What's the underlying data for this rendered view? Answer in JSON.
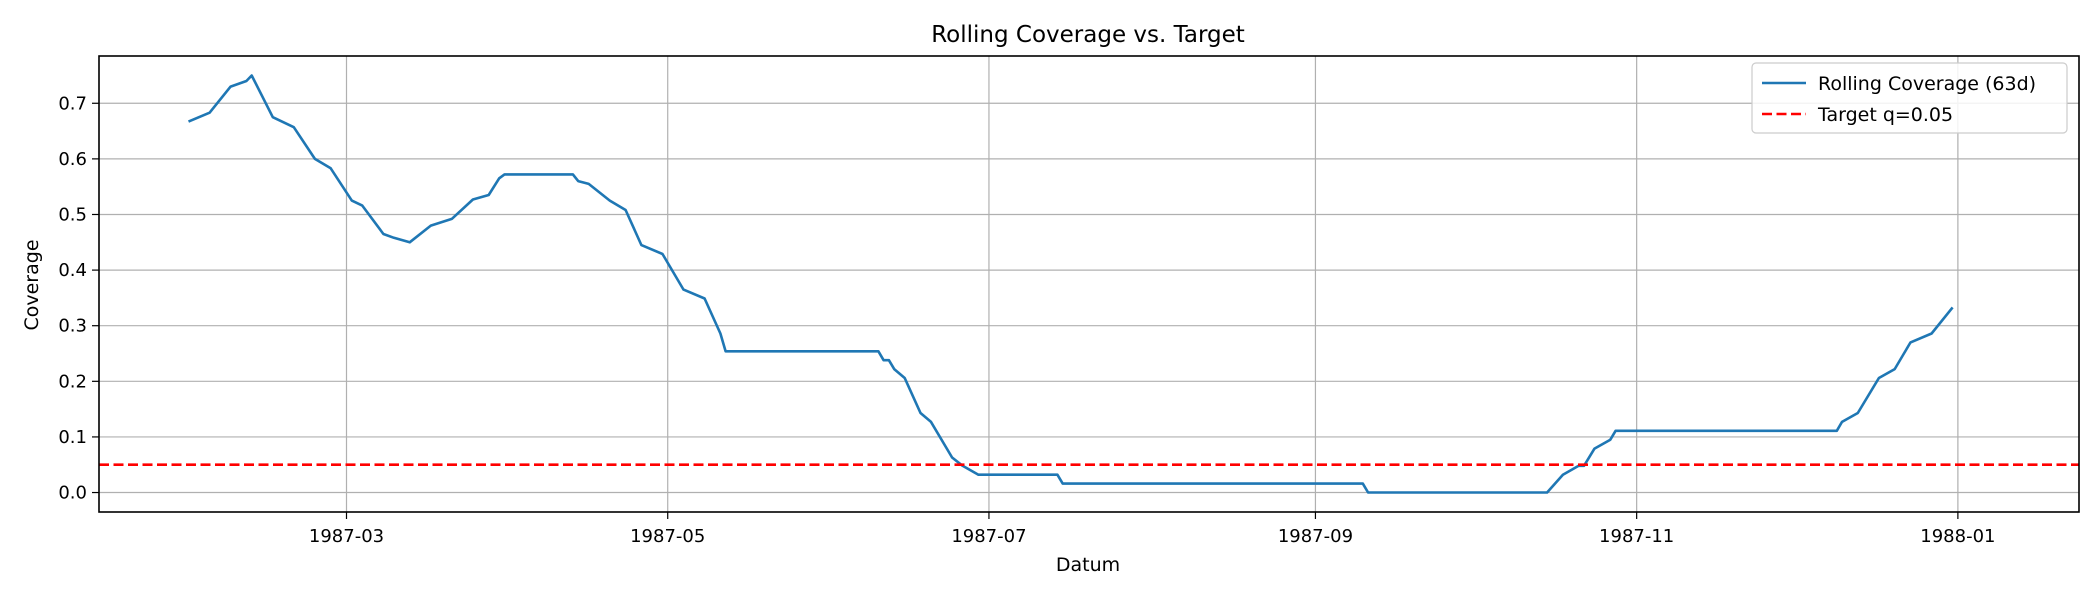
{
  "chart_data": {
    "type": "line",
    "title": "Rolling Coverage vs. Target",
    "xlabel": "Datum",
    "ylabel": "Coverage",
    "xlim": [
      "1987-01-13",
      "1988-01-24"
    ],
    "ylim": [
      -0.035,
      0.785
    ],
    "x_ticks": [
      "1987-03-01",
      "1987-05-01",
      "1987-07-01",
      "1987-09-01",
      "1987-11-01",
      "1988-01-01"
    ],
    "x_tick_labels": [
      "1987-03",
      "1987-05",
      "1987-07",
      "1987-09",
      "1987-11",
      "1988-01"
    ],
    "y_ticks": [
      0.0,
      0.1,
      0.2,
      0.3,
      0.4,
      0.5,
      0.6,
      0.7
    ],
    "y_tick_labels": [
      "0.0",
      "0.1",
      "0.2",
      "0.3",
      "0.4",
      "0.5",
      "0.6",
      "0.7"
    ],
    "grid": true,
    "legend_position": "top-right",
    "series": [
      {
        "name": "Rolling Coverage (63d)",
        "color": "#1f77b4",
        "style": "solid",
        "x": [
          "1987-01-30",
          "1987-02-03",
          "1987-02-07",
          "1987-02-10",
          "1987-02-11",
          "1987-02-15",
          "1987-02-19",
          "1987-02-23",
          "1987-02-26",
          "1987-03-02",
          "1987-03-04",
          "1987-03-08",
          "1987-03-10",
          "1987-03-13",
          "1987-03-17",
          "1987-03-21",
          "1987-03-25",
          "1987-03-28",
          "1987-03-30",
          "1987-03-31",
          "1987-04-02",
          "1987-04-10",
          "1987-04-13",
          "1987-04-14",
          "1987-04-16",
          "1987-04-20",
          "1987-04-23",
          "1987-04-26",
          "1987-04-30",
          "1987-05-04",
          "1987-05-08",
          "1987-05-11",
          "1987-05-12",
          "1987-06-10",
          "1987-06-11",
          "1987-06-12",
          "1987-06-13",
          "1987-06-15",
          "1987-06-18",
          "1987-06-20",
          "1987-06-24",
          "1987-06-26",
          "1987-06-29",
          "1987-07-14",
          "1987-07-15",
          "1987-09-10",
          "1987-09-11",
          "1987-10-15",
          "1987-10-18",
          "1987-10-21",
          "1987-10-22",
          "1987-10-24",
          "1987-10-27",
          "1987-10-28",
          "1987-12-09",
          "1987-12-10",
          "1987-12-13",
          "1987-12-17",
          "1987-12-20",
          "1987-12-23",
          "1987-12-27",
          "1987-12-31"
        ],
        "values": [
          0.667,
          0.683,
          0.73,
          0.74,
          0.75,
          0.675,
          0.657,
          0.6,
          0.583,
          0.525,
          0.516,
          0.465,
          0.458,
          0.45,
          0.48,
          0.492,
          0.527,
          0.535,
          0.565,
          0.572,
          0.572,
          0.572,
          0.572,
          0.56,
          0.555,
          0.525,
          0.508,
          0.445,
          0.429,
          0.365,
          0.349,
          0.286,
          0.254,
          0.254,
          0.238,
          0.238,
          0.222,
          0.206,
          0.143,
          0.127,
          0.063,
          0.048,
          0.032,
          0.032,
          0.016,
          0.016,
          0.0,
          0.0,
          0.032,
          0.048,
          0.048,
          0.079,
          0.095,
          0.111,
          0.111,
          0.127,
          0.143,
          0.206,
          0.222,
          0.27,
          0.286,
          0.333
        ]
      },
      {
        "name": "Target q=0.05",
        "color": "#ff0000",
        "style": "dashed",
        "y": 0.05
      }
    ]
  }
}
